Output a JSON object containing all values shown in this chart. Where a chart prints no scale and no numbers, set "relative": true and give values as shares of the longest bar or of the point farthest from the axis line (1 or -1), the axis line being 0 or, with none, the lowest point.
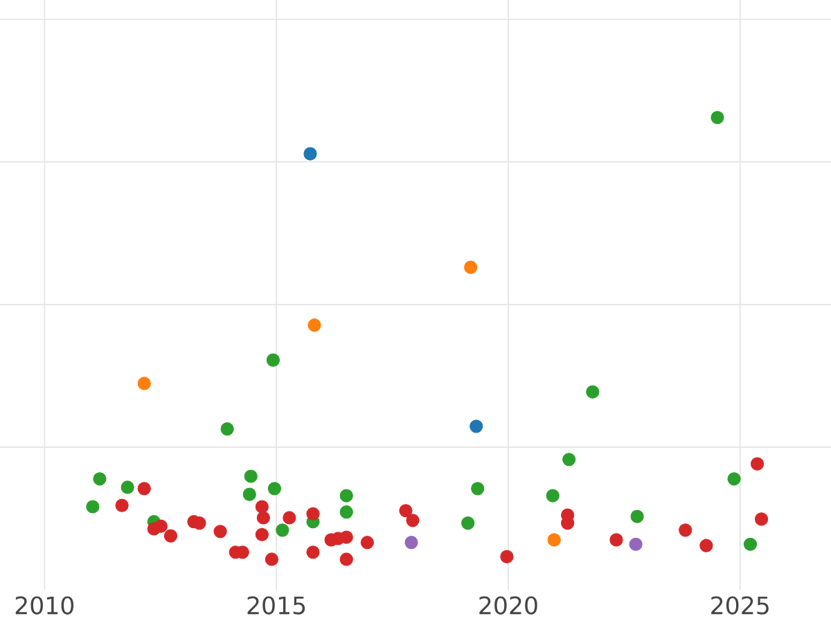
{
  "chart_data": {
    "type": "scatter",
    "relative": true,
    "marker": "circle",
    "grid": true,
    "tick_labels": "x",
    "xlim": [
      2009.04,
      2026.96
    ],
    "xticks": [
      2010,
      2015,
      2020,
      2025
    ],
    "series": [
      {
        "color": "#2ca02c",
        "x": [
          2011.04,
          2011.19,
          2011.79,
          2012.36,
          2013.94,
          2014.45,
          2014.42,
          2014.93,
          2014.96,
          2015.13,
          2015.79,
          2016.51,
          2016.51,
          2019.13,
          2019.34,
          2020.96,
          2021.82,
          2021.31,
          2022.78,
          2024.51,
          2024.87,
          2025.22
        ],
        "values": [
          0.119,
          0.182,
          0.163,
          0.085,
          0.295,
          0.188,
          0.147,
          0.451,
          0.16,
          0.066,
          0.085,
          0.144,
          0.107,
          0.082,
          0.16,
          0.144,
          0.379,
          0.226,
          0.097,
          1.0,
          0.182,
          0.034
        ]
      },
      {
        "color": "#d62728",
        "x": [
          2011.67,
          2012.15,
          2012.36,
          2012.51,
          2012.72,
          2013.22,
          2013.34,
          2013.79,
          2014.12,
          2014.27,
          2014.69,
          2014.72,
          2014.69,
          2014.9,
          2015.28,
          2015.79,
          2015.79,
          2016.18,
          2016.33,
          2016.51,
          2016.51,
          2016.96,
          2017.79,
          2017.94,
          2019.97,
          2021.28,
          2021.28,
          2022.33,
          2023.82,
          2024.27,
          2025.37,
          2025.46
        ],
        "values": [
          0.122,
          0.16,
          0.069,
          0.075,
          0.053,
          0.085,
          0.082,
          0.063,
          0.016,
          0.016,
          0.119,
          0.094,
          0.056,
          0.0,
          0.094,
          0.103,
          0.016,
          0.044,
          0.047,
          0.05,
          0.0,
          0.038,
          0.11,
          0.088,
          0.006,
          0.1,
          0.082,
          0.044,
          0.066,
          0.031,
          0.216,
          0.091
        ]
      },
      {
        "color": "#1f77b4",
        "x": [
          2015.73,
          2019.31
        ],
        "values": [
          0.918,
          0.301
        ]
      },
      {
        "color": "#ff7f0e",
        "x": [
          2012.15,
          2015.82,
          2019.19,
          2020.99
        ],
        "values": [
          0.398,
          0.53,
          0.661,
          0.044
        ]
      },
      {
        "color": "#9467bd",
        "x": [
          2017.91,
          2022.75
        ],
        "values": [
          0.038,
          0.034
        ]
      }
    ]
  }
}
